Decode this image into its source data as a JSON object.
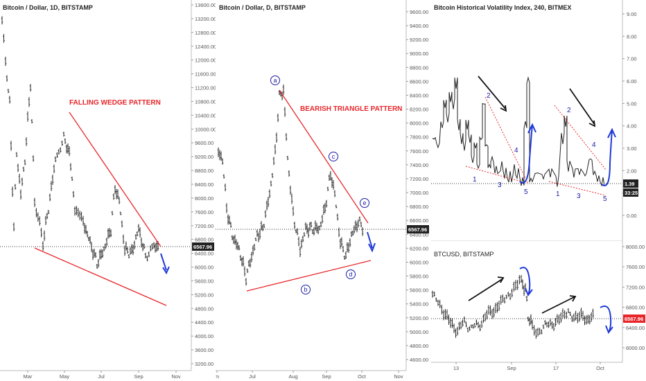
{
  "charts": {
    "p1": {
      "title": "Bitcoin / Dollar, 1D, BITSTAMP",
      "annotation": "FALLING WEDGE PATTERN",
      "price_label": "6567.96",
      "y_ticks": [
        "13600.00",
        "13200.00",
        "12800.00",
        "12400.00",
        "12000.00",
        "11600.00",
        "11200.00",
        "10800.00",
        "10400.00",
        "10000.00",
        "9600.00",
        "9200.00",
        "8800.00",
        "8400.00",
        "8000.00",
        "7600.00",
        "7200.00",
        "6800.00",
        "6400.00",
        "6000.00",
        "5600.00",
        "5200.00",
        "4800.00",
        "4400.00",
        "4000.00",
        "3600.00",
        "3200.00"
      ],
      "x_ticks": [
        "Mar",
        "May",
        "Jul",
        "Sep",
        "Nov"
      ]
    },
    "p2": {
      "title": "Bitcoin / Dollar, D, BITSTAMP",
      "annotation": "BEARISH TRIANGLE PATTERN",
      "price_label": "6567.96",
      "wave_labels": [
        "a",
        "b",
        "c",
        "d",
        "e"
      ],
      "y_ticks": [
        "9600.00",
        "9400.00",
        "9200.00",
        "9000.00",
        "8800.00",
        "8600.00",
        "8400.00",
        "8200.00",
        "8000.00",
        "7800.00",
        "7600.00",
        "7400.00",
        "7200.00",
        "7000.00",
        "6800.00",
        "6600.00",
        "6400.00",
        "6200.00",
        "6000.00",
        "5800.00",
        "5600.00",
        "5400.00",
        "5200.00",
        "5000.00",
        "4800.00",
        "4600.00"
      ],
      "x_ticks": [
        "m",
        "Jul",
        "Aug",
        "Sep",
        "Oct",
        "Nov"
      ]
    },
    "p3": {
      "title": "Bitcoin Historical Volatility Index, 240, BITMEX",
      "price_label": "1.39",
      "time_label": "33:25",
      "y_ticks": [
        "9.00",
        "8.00",
        "7.00",
        "6.00",
        "5.00",
        "4.00",
        "3.00",
        "2.00",
        "1.00",
        "0.00"
      ],
      "wave_labels": [
        "1",
        "2",
        "3",
        "4",
        "5",
        "1",
        "2",
        "3",
        "4",
        "5"
      ]
    },
    "p4": {
      "title": "BTCUSD, BITSTAMP",
      "price_label": "6567.96",
      "y_ticks": [
        "8000.00",
        "7600.00",
        "7200.00",
        "6800.00",
        "6400.00",
        "6000.00"
      ],
      "x_ticks": [
        "13",
        "Sep",
        "17",
        "Oct"
      ]
    }
  },
  "chart_data": [
    {
      "type": "candlestick",
      "title": "Bitcoin / Dollar, 1D, BITSTAMP",
      "x": [
        "Mar",
        "May",
        "Jul",
        "Sep",
        "Nov"
      ],
      "ylim": [
        3200,
        13800
      ],
      "last_price": 6567.96,
      "pattern": "FALLING WEDGE PATTERN",
      "approx_closes": [
        13400,
        11200,
        10400,
        8600,
        9800,
        7100,
        7600,
        10200,
        9400,
        8200,
        8600,
        7200,
        6900,
        6200,
        6500,
        6700,
        6400,
        8400,
        7400,
        6200,
        6400,
        6600,
        7200,
        6300,
        6500,
        6567.96
      ],
      "wedge_upper": [
        [
          10400,
          "May"
        ],
        [
          6700,
          "Oct"
        ]
      ],
      "wedge_lower": [
        [
          6650,
          "Feb"
        ],
        [
          5000,
          "Nov"
        ]
      ]
    },
    {
      "type": "candlestick",
      "title": "Bitcoin / Dollar, D, BITSTAMP",
      "x": [
        "m",
        "Jul",
        "Aug",
        "Sep",
        "Oct",
        "Nov"
      ],
      "ylim": [
        4600,
        9700
      ],
      "last_price": 6567.96,
      "pattern": "BEARISH TRIANGLE PATTERN",
      "approx_closes": [
        7700,
        7600,
        6400,
        6200,
        6000,
        5800,
        6300,
        6600,
        7200,
        7600,
        8100,
        8200,
        7200,
        6400,
        6100,
        6600,
        6300,
        6500,
        7000,
        7300,
        6700,
        6300,
        6700,
        6500,
        6567.96
      ],
      "waves": {
        "a": 8500,
        "b": 5900,
        "c": 7400,
        "d": 6200,
        "e": 6900
      }
    },
    {
      "type": "line",
      "title": "Bitcoin Historical Volatility Index, 240, BITMEX",
      "ylim": [
        0,
        9.2
      ],
      "last_value": 1.39,
      "approx_values": [
        3.2,
        3.8,
        5.1,
        4.6,
        6.0,
        3.4,
        2.4,
        4.0,
        5.2,
        2.6,
        2.1,
        1.8,
        2.4,
        1.6,
        1.9,
        1.2,
        2.2,
        1.6,
        3.6,
        6.1,
        2.6,
        2.0,
        1.6,
        2.2,
        1.4,
        1.8,
        4.2,
        2.6,
        1.9,
        2.4,
        1.6,
        2.6,
        1.8,
        1.39
      ]
    },
    {
      "type": "candlestick",
      "title": "BTCUSD, BITSTAMP",
      "x": [
        "13",
        "Sep",
        "17",
        "Oct"
      ],
      "ylim": [
        5900,
        8100
      ],
      "last_price": 6567.96,
      "approx_closes": [
        6800,
        6500,
        6300,
        6400,
        6600,
        6500,
        6800,
        7000,
        7100,
        7300,
        7200,
        7400,
        7000,
        6400,
        6300,
        6350,
        6450,
        6500,
        6700,
        6600,
        6550,
        6600,
        6567.96
      ]
    }
  ]
}
